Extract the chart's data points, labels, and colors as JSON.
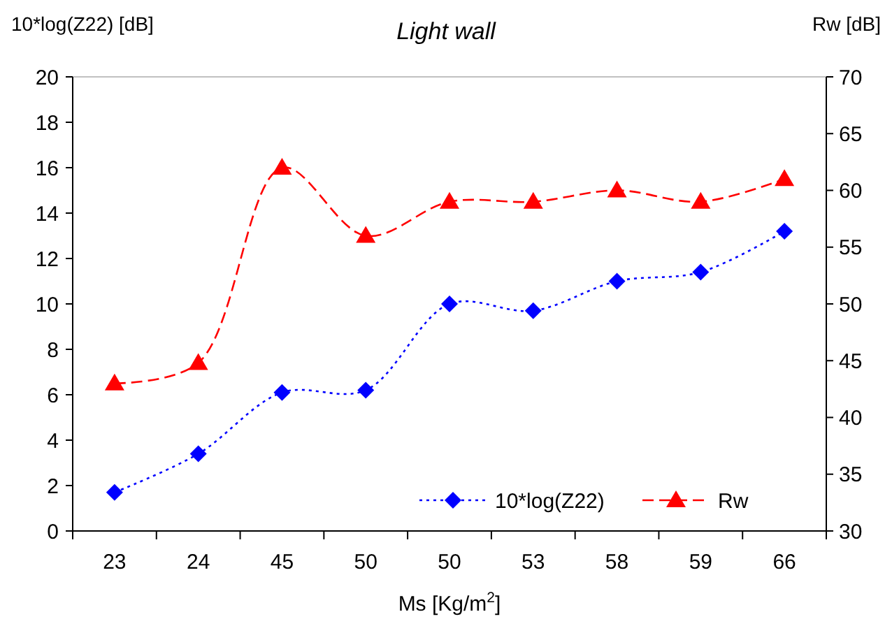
{
  "chart_data": {
    "type": "line",
    "title": "Light wall",
    "xlabel": "Ms [Kg/m$^{2}$]",
    "ylabel": "10*log(Z22) [dB]",
    "y2label": "Rw [dB]",
    "categories": [
      "23",
      "24",
      "45",
      "50",
      "50",
      "53",
      "58",
      "59",
      "66"
    ],
    "series": [
      {
        "name": "10*log(Z22)",
        "color": "#0000ff",
        "marker": "diamond",
        "line_style": "dotted",
        "values": [
          1.7,
          3.4,
          6.1,
          6.2,
          10.0,
          9.7,
          11.0,
          11.4,
          13.2
        ]
      },
      {
        "name": "Rw",
        "color": "#ff0000",
        "marker": "triangle",
        "line_style": "dashed",
        "axis": "y2",
        "values": [
          43,
          44.8,
          62,
          56,
          59,
          59,
          60,
          59,
          61
        ]
      }
    ],
    "ylim": [
      0,
      20
    ],
    "yticks": [
      0,
      2,
      4,
      6,
      8,
      10,
      12,
      14,
      16,
      18,
      20
    ],
    "y2lim": [
      30,
      70
    ],
    "y2ticks": [
      30,
      35,
      40,
      45,
      50,
      55,
      60,
      65,
      70
    ],
    "grid": false,
    "legend": "bottom right"
  }
}
